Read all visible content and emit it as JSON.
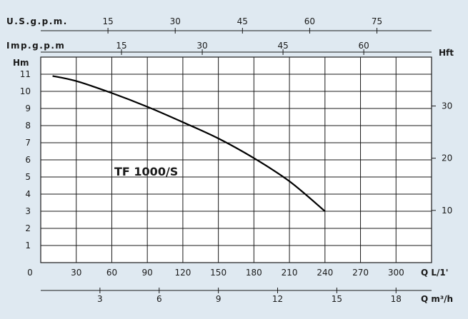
{
  "chart_data": {
    "type": "line",
    "title": "TF 1000/S",
    "ylabel": "Hm",
    "y2label": "Hft",
    "xlabel": "Q L/1'",
    "x_ticks": [
      0,
      30,
      60,
      90,
      120,
      150,
      180,
      210,
      240,
      270,
      300
    ],
    "xlim": [
      0,
      330
    ],
    "y_ticks": [
      1,
      2,
      3,
      4,
      5,
      6,
      7,
      8,
      9,
      10,
      11
    ],
    "ylim": [
      0,
      12
    ],
    "grid": true,
    "series": [
      {
        "name": "TF 1000/S",
        "x": [
          10,
          30,
          60,
          90,
          120,
          150,
          180,
          210,
          240
        ],
        "y": [
          10.9,
          10.6,
          9.9,
          9.1,
          8.2,
          7.25,
          6.1,
          4.75,
          3.0
        ]
      }
    ],
    "top_axes": [
      {
        "label": "U.S.g.p.m.",
        "ticks": [
          15,
          30,
          45,
          60,
          75
        ],
        "factor": 3.785
      },
      {
        "label": "Imp.g.p.m",
        "ticks": [
          15,
          30,
          45,
          60
        ],
        "factor": 4.546
      }
    ],
    "right_axis": {
      "label": "Hft",
      "ticks": [
        10,
        20,
        30
      ],
      "factor": 0.3048
    },
    "bottom_axis2": {
      "label": "Q m³/h",
      "ticks": [
        3,
        6,
        9,
        12,
        15,
        18
      ],
      "factor": 16.6667
    },
    "colors": {
      "background": "#dfe9f1",
      "plot": "#ffffff",
      "grid": "#1a1a1a",
      "curve": "#000000"
    }
  }
}
